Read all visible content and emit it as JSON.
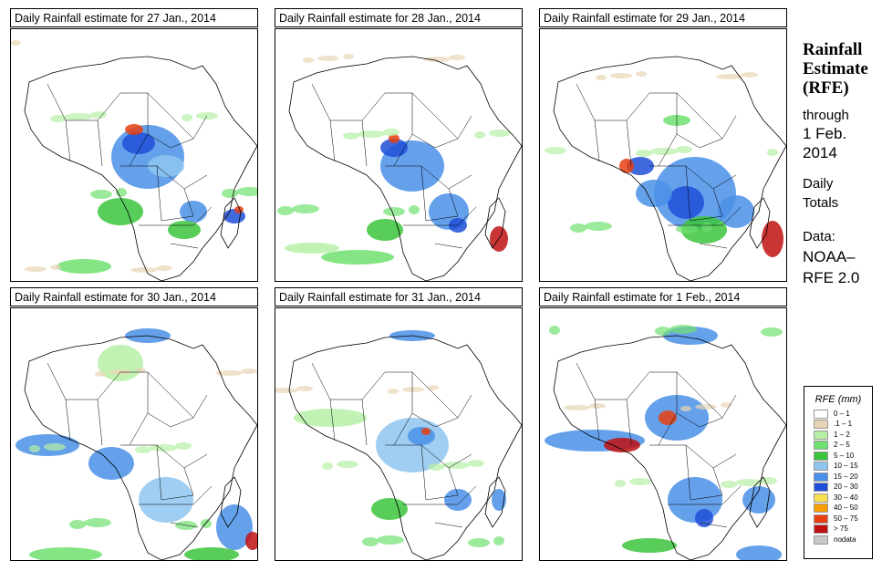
{
  "panels": [
    {
      "title": "Daily Rainfall estimate for  27 Jan., 2014"
    },
    {
      "title": "Daily Rainfall estimate for  28 Jan., 2014"
    },
    {
      "title": "Daily Rainfall estimate for  29 Jan., 2014"
    },
    {
      "title": "Daily Rainfall estimate for  30 Jan., 2014"
    },
    {
      "title": "Daily Rainfall estimate for  31 Jan., 2014"
    },
    {
      "title": "Daily Rainfall estimate for  1 Feb., 2014"
    }
  ],
  "sidebar": {
    "title_line1": "Rainfall",
    "title_line2": "Estimate",
    "title_line3": "(RFE)",
    "through": "through",
    "date_line1": "1 Feb.",
    "date_line2": "2014",
    "daily": "Daily",
    "totals": "Totals",
    "data_label": "Data:",
    "source_line1": "NOAA–",
    "source_line2": "RFE 2.0"
  },
  "legend": {
    "title": "RFE (mm)",
    "items": [
      {
        "label": "0 – 1",
        "color": "#ffffff"
      },
      {
        "label": ".1 – 1",
        "color": "#e8d5b5"
      },
      {
        "label": "1 – 2",
        "color": "#b6f0a6"
      },
      {
        "label": "2 – 5",
        "color": "#70e070"
      },
      {
        "label": "5 – 10",
        "color": "#3cc43c"
      },
      {
        "label": "10 – 15",
        "color": "#8ec6f0"
      },
      {
        "label": "15 – 20",
        "color": "#4a90e8"
      },
      {
        "label": "20 – 30",
        "color": "#1f4fd8"
      },
      {
        "label": "30 – 40",
        "color": "#f5e050"
      },
      {
        "label": "40 – 50",
        "color": "#f5a000"
      },
      {
        "label": "50 – 75",
        "color": "#e84010"
      },
      {
        "label": "> 75",
        "color": "#c01010"
      },
      {
        "label": "nodata",
        "color": "#c8c8c8"
      }
    ]
  }
}
